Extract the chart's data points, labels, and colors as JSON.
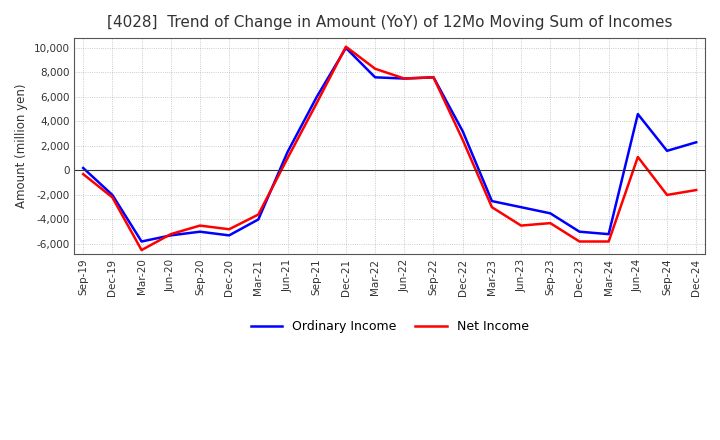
{
  "title": "[4028]  Trend of Change in Amount (YoY) of 12Mo Moving Sum of Incomes",
  "ylabel": "Amount (million yen)",
  "ylim": [
    -6800,
    10800
  ],
  "yticks": [
    -6000,
    -4000,
    -2000,
    0,
    2000,
    4000,
    6000,
    8000,
    10000
  ],
  "background_color": "#ffffff",
  "grid_color": "#aaaaaa",
  "ordinary_income_color": "#0000ff",
  "net_income_color": "#ff0000",
  "x_labels": [
    "Sep-19",
    "Dec-19",
    "Mar-20",
    "Jun-20",
    "Sep-20",
    "Dec-20",
    "Mar-21",
    "Jun-21",
    "Sep-21",
    "Dec-21",
    "Mar-22",
    "Jun-22",
    "Sep-22",
    "Dec-22",
    "Mar-23",
    "Jun-23",
    "Sep-23",
    "Dec-23",
    "Mar-24",
    "Jun-24",
    "Sep-24",
    "Dec-24"
  ],
  "ordinary_income": [
    200,
    -2000,
    -5800,
    -5300,
    -5000,
    -5300,
    -4000,
    1500,
    6000,
    10000,
    7600,
    7500,
    7600,
    3200,
    -2500,
    -3000,
    -3500,
    -5000,
    -5200,
    4600,
    1600,
    2300
  ],
  "net_income": [
    -300,
    -2200,
    -6500,
    -5200,
    -4500,
    -4800,
    -3600,
    1000,
    5500,
    10100,
    8300,
    7500,
    7600,
    2500,
    -3000,
    -4500,
    -4300,
    -5800,
    -5800,
    1100,
    -2000,
    -1600
  ]
}
